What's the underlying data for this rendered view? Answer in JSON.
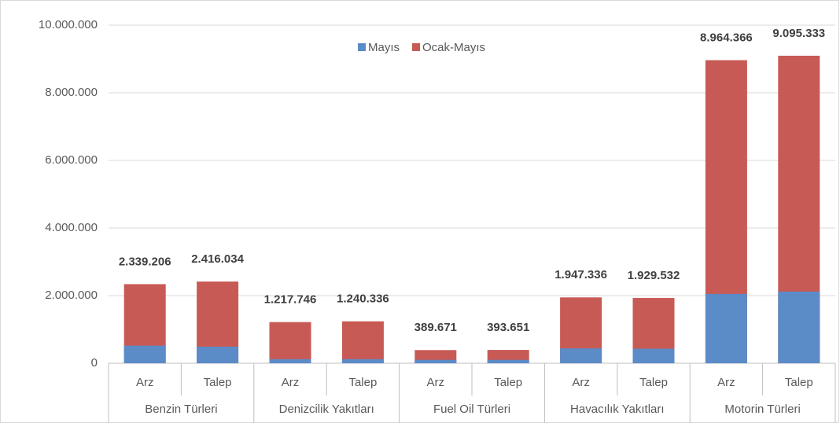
{
  "chart_data": {
    "type": "overlap-bar",
    "categories": [
      "Arz",
      "Talep",
      "Arz",
      "Talep",
      "Arz",
      "Talep",
      "Arz",
      "Talep",
      "Arz",
      "Talep"
    ],
    "groups": [
      "Benzin Türleri",
      "Denizcilik Yakıtları",
      "Fuel Oil Türleri",
      "Havacılık Yakıtları",
      "Motorin Türleri"
    ],
    "series": [
      {
        "name": "Mayıs",
        "color": "#5b8cc8",
        "values": [
          520000,
          490000,
          120000,
          120000,
          100000,
          100000,
          440000,
          430000,
          2050000,
          2120000
        ]
      },
      {
        "name": "Ocak-Mayıs",
        "color": "#c85a56",
        "values": [
          2339206,
          2416034,
          1217746,
          1240336,
          389671,
          393651,
          1947336,
          1929532,
          8964366,
          9095333
        ],
        "value_labels": [
          "2.339.206",
          "2.416.034",
          "1.217.746",
          "1.240.336",
          "389.671",
          "393.651",
          "1.947.336",
          "1.929.532",
          "8.964.366",
          "9.095.333"
        ]
      }
    ],
    "ylim": [
      0,
      10000000
    ],
    "yticks": [
      0,
      {
        "value": 2000000,
        "label": "2.000.000"
      },
      {
        "value": 4000000,
        "label": "4.000.000"
      },
      {
        "value": 6000000,
        "label": "6.000.000"
      },
      {
        "value": 8000000,
        "label": "8.000.000"
      },
      {
        "value": 10000000,
        "label": "10.000.000"
      }
    ],
    "grid": true,
    "legend": "top"
  }
}
